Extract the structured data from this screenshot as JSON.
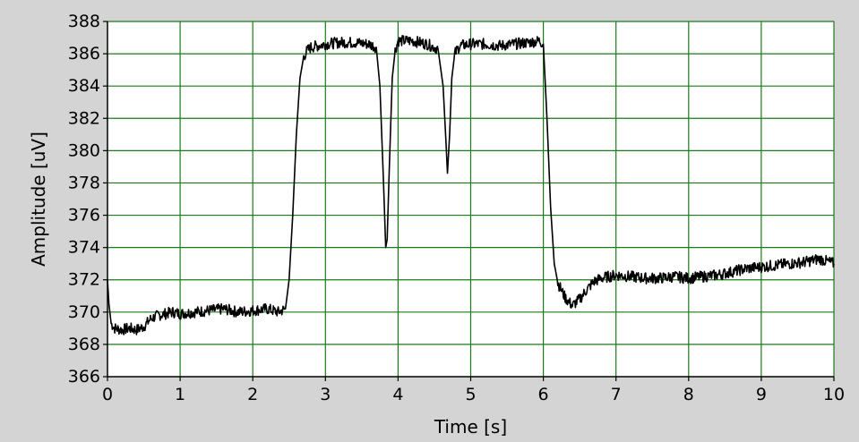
{
  "chart_data": {
    "type": "line",
    "title": "",
    "xlabel": "Time [s]",
    "ylabel": "Amplitude [uV]",
    "xlim": [
      0,
      10
    ],
    "ylim": [
      366,
      388
    ],
    "x_ticks": [
      0,
      1,
      2,
      3,
      4,
      5,
      6,
      7,
      8,
      9,
      10
    ],
    "y_ticks": [
      366,
      368,
      370,
      372,
      374,
      376,
      378,
      380,
      382,
      384,
      386,
      388
    ],
    "grid": true,
    "legend": "none",
    "colors": {
      "background": "#d4d4d4",
      "plot_area": "#ffffff",
      "grid": "#1a7a1a",
      "line": "#000000"
    },
    "series": [
      {
        "x": [
          0.0,
          0.02,
          0.05,
          0.1,
          0.2,
          0.3,
          0.4,
          0.5,
          0.6,
          0.7,
          0.8,
          0.9,
          1.0,
          1.2,
          1.4,
          1.6,
          1.8,
          2.0,
          2.2,
          2.35,
          2.45,
          2.5,
          2.55,
          2.6,
          2.65,
          2.7,
          2.75,
          2.8,
          2.9,
          3.0,
          3.2,
          3.4,
          3.6,
          3.7,
          3.75,
          3.8,
          3.83,
          3.85,
          3.88,
          3.92,
          3.96,
          4.0,
          4.2,
          4.4,
          4.55,
          4.62,
          4.66,
          4.68,
          4.71,
          4.74,
          4.78,
          4.85,
          5.0,
          5.2,
          5.4,
          5.6,
          5.8,
          5.95,
          6.0,
          6.05,
          6.1,
          6.15,
          6.2,
          6.3,
          6.4,
          6.5,
          6.6,
          6.7,
          6.8,
          7.0,
          7.2,
          7.4,
          7.6,
          7.8,
          8.0,
          8.2,
          8.4,
          8.6,
          8.8,
          9.0,
          9.2,
          9.4,
          9.6,
          9.8,
          10.0
        ],
        "y": [
          372.0,
          370.5,
          369.3,
          369.0,
          368.9,
          369.0,
          368.9,
          369.1,
          369.6,
          369.8,
          369.9,
          370.0,
          369.9,
          370.0,
          370.1,
          370.2,
          370.0,
          370.1,
          370.2,
          370.0,
          370.2,
          372.0,
          376.0,
          381.0,
          384.5,
          385.8,
          386.2,
          386.4,
          386.5,
          386.6,
          386.7,
          386.7,
          386.6,
          386.4,
          384.0,
          378.0,
          374.0,
          374.5,
          379.0,
          384.5,
          386.2,
          386.8,
          386.8,
          386.6,
          386.3,
          384.0,
          380.5,
          378.6,
          381.0,
          384.5,
          386.0,
          386.5,
          386.6,
          386.6,
          386.5,
          386.6,
          386.7,
          386.8,
          386.6,
          382.0,
          376.5,
          373.0,
          371.8,
          370.9,
          370.4,
          370.8,
          371.4,
          371.9,
          372.1,
          372.3,
          372.2,
          372.1,
          372.1,
          372.2,
          372.1,
          372.2,
          372.3,
          372.5,
          372.7,
          372.8,
          372.9,
          373.0,
          373.1,
          373.3,
          373.0
        ]
      }
    ]
  }
}
